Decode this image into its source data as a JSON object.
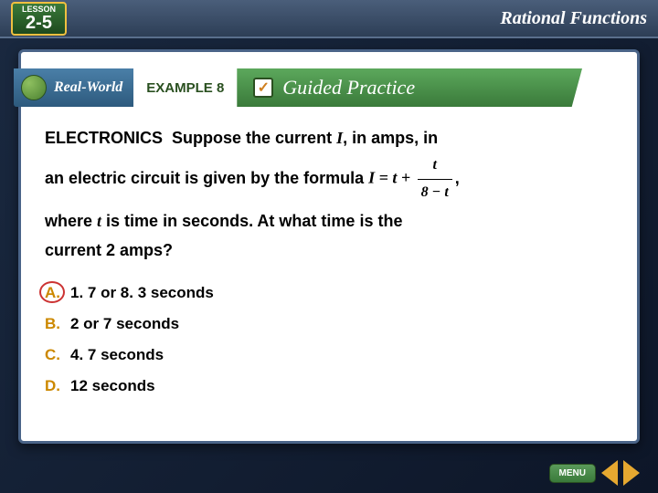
{
  "lesson": {
    "label": "LESSON",
    "number": "2-5"
  },
  "header_title": "Rational Functions",
  "banner": {
    "left_text": "Real-World",
    "example_label": "EXAMPLE 8",
    "check_mark": "✓",
    "right_text": "Guided Practice"
  },
  "problem": {
    "topic": "ELECTRONICS",
    "line1_a": "Suppose the current ",
    "var_I": "I",
    "line1_b": ", in amps, in",
    "line2": "an electric circuit is given by the formula ",
    "formula_lhs": "I = t + ",
    "formula_num": "t",
    "formula_den": "8 − t",
    "comma": ",",
    "line3_a": "where ",
    "var_t": "t",
    "line3_b": " is time in seconds. At what time is the",
    "line4": "current 2 amps?"
  },
  "answers": [
    {
      "letter": "A.",
      "text": "1. 7 or 8. 3 seconds",
      "selected": true
    },
    {
      "letter": "B.",
      "text": "2 or 7 seconds",
      "selected": false
    },
    {
      "letter": "C.",
      "text": "4. 7 seconds",
      "selected": false
    },
    {
      "letter": "D.",
      "text": "12 seconds",
      "selected": false
    }
  ],
  "nav": {
    "menu_label": "MENU"
  },
  "colors": {
    "bg_dark": "#1a2940",
    "frame_border": "#4a6488",
    "banner_blue": "#2d5a7e",
    "banner_green": "#3a7a3a",
    "accent_gold": "#f0c040",
    "answer_letter": "#cc8800",
    "selected_ring": "#cc3333",
    "nav_arrow": "#e6a830"
  }
}
